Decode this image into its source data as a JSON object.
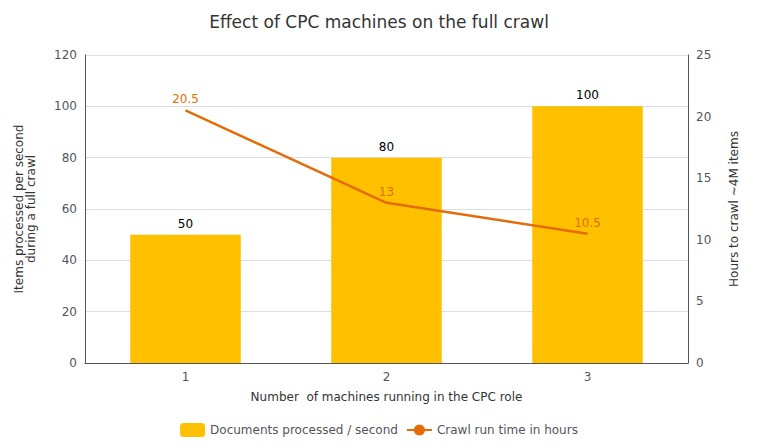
{
  "chart_data": {
    "type": "bar",
    "title": "Effect of CPC machines on the full crawl",
    "categories": [
      "1",
      "2",
      "3"
    ],
    "xlabel": "Number  of machines running in the CPC role",
    "ylabel": "Items processed per second\nduring a full crawl",
    "y2label": "Hours to crawl ~4M items",
    "ylim": [
      0,
      120
    ],
    "yticks": [
      0,
      20,
      40,
      60,
      80,
      100,
      120
    ],
    "y2lim": [
      0,
      25
    ],
    "y2ticks": [
      0,
      5,
      10,
      15,
      20,
      25
    ],
    "grid": true,
    "legend": "bottom",
    "data_labels": true,
    "series": [
      {
        "name": "Documents processed / second",
        "type": "bar",
        "color": "#FFC000",
        "values": [
          50,
          80,
          100
        ]
      },
      {
        "name": "Crawl run time in hours",
        "type": "line",
        "color": "#E36C09",
        "values": [
          20.5,
          13,
          10.5
        ],
        "axis": "y2",
        "marker": "none"
      }
    ]
  }
}
